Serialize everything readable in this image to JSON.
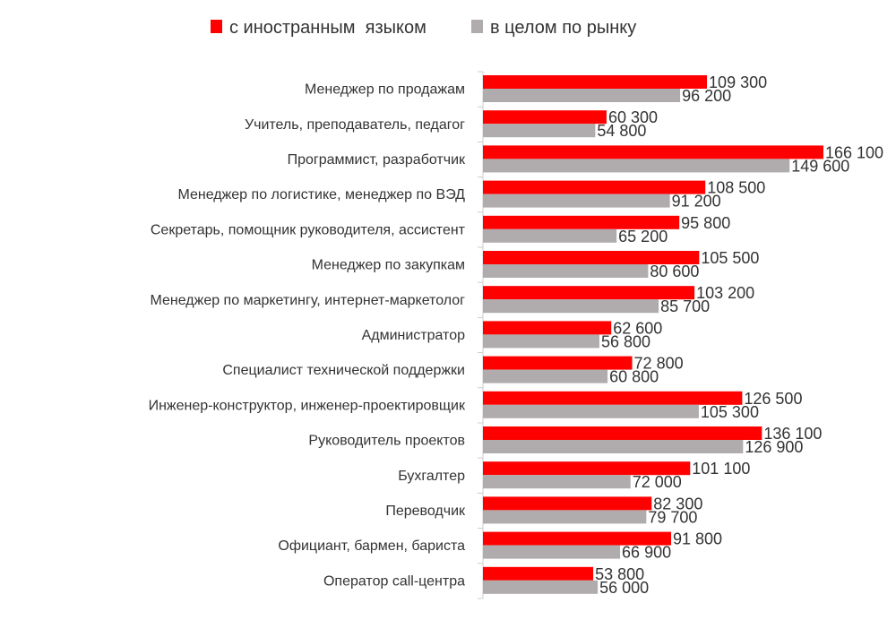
{
  "chart_data": {
    "type": "bar",
    "orientation": "horizontal",
    "title": "",
    "xlabel": "",
    "ylabel": "",
    "xlim": [
      0,
      166100
    ],
    "grid": false,
    "legend_position": "top",
    "categories": [
      "Менеджер по продажам",
      "Учитель, преподаватель, педагог",
      "Программист, разработчик",
      "Менеджер по логистике, менеджер по ВЭД",
      "Секретарь, помощник руководителя, ассистент",
      "Менеджер по закупкам",
      "Менеджер по маркетингу, интернет-маркетолог",
      "Администратор",
      "Специалист технической поддержки",
      "Инженер-конструктор, инженер-проектировщик",
      "Руководитель проектов",
      "Бухгалтер",
      "Переводчик",
      "Официант, бармен, бариста",
      "Оператор call-центра"
    ],
    "series": [
      {
        "name": "с иностранным  языком",
        "color": "#ff0000",
        "values": [
          109300,
          60300,
          166100,
          108500,
          95800,
          105500,
          103200,
          62600,
          72800,
          126500,
          136100,
          101100,
          82300,
          91800,
          53800
        ],
        "labels": [
          "109 300",
          "60 300",
          "166 100",
          "108 500",
          "95 800",
          "105 500",
          "103 200",
          "62 600",
          "72 800",
          "126 500",
          "136 100",
          "101 100",
          "82 300",
          "91 800",
          "53 800"
        ]
      },
      {
        "name": "в целом по рынку",
        "color": "#b0acad",
        "values": [
          96200,
          54800,
          149600,
          91200,
          65200,
          80600,
          85700,
          56800,
          60800,
          105300,
          126900,
          72000,
          79700,
          66900,
          56000
        ],
        "labels": [
          "96 200",
          "54 800",
          "149 600",
          "91 200",
          "65 200",
          "80 600",
          "85 700",
          "56 800",
          "60 800",
          "105 300",
          "126 900",
          "72 000",
          "79 700",
          "66 900",
          "56 000"
        ]
      }
    ]
  }
}
